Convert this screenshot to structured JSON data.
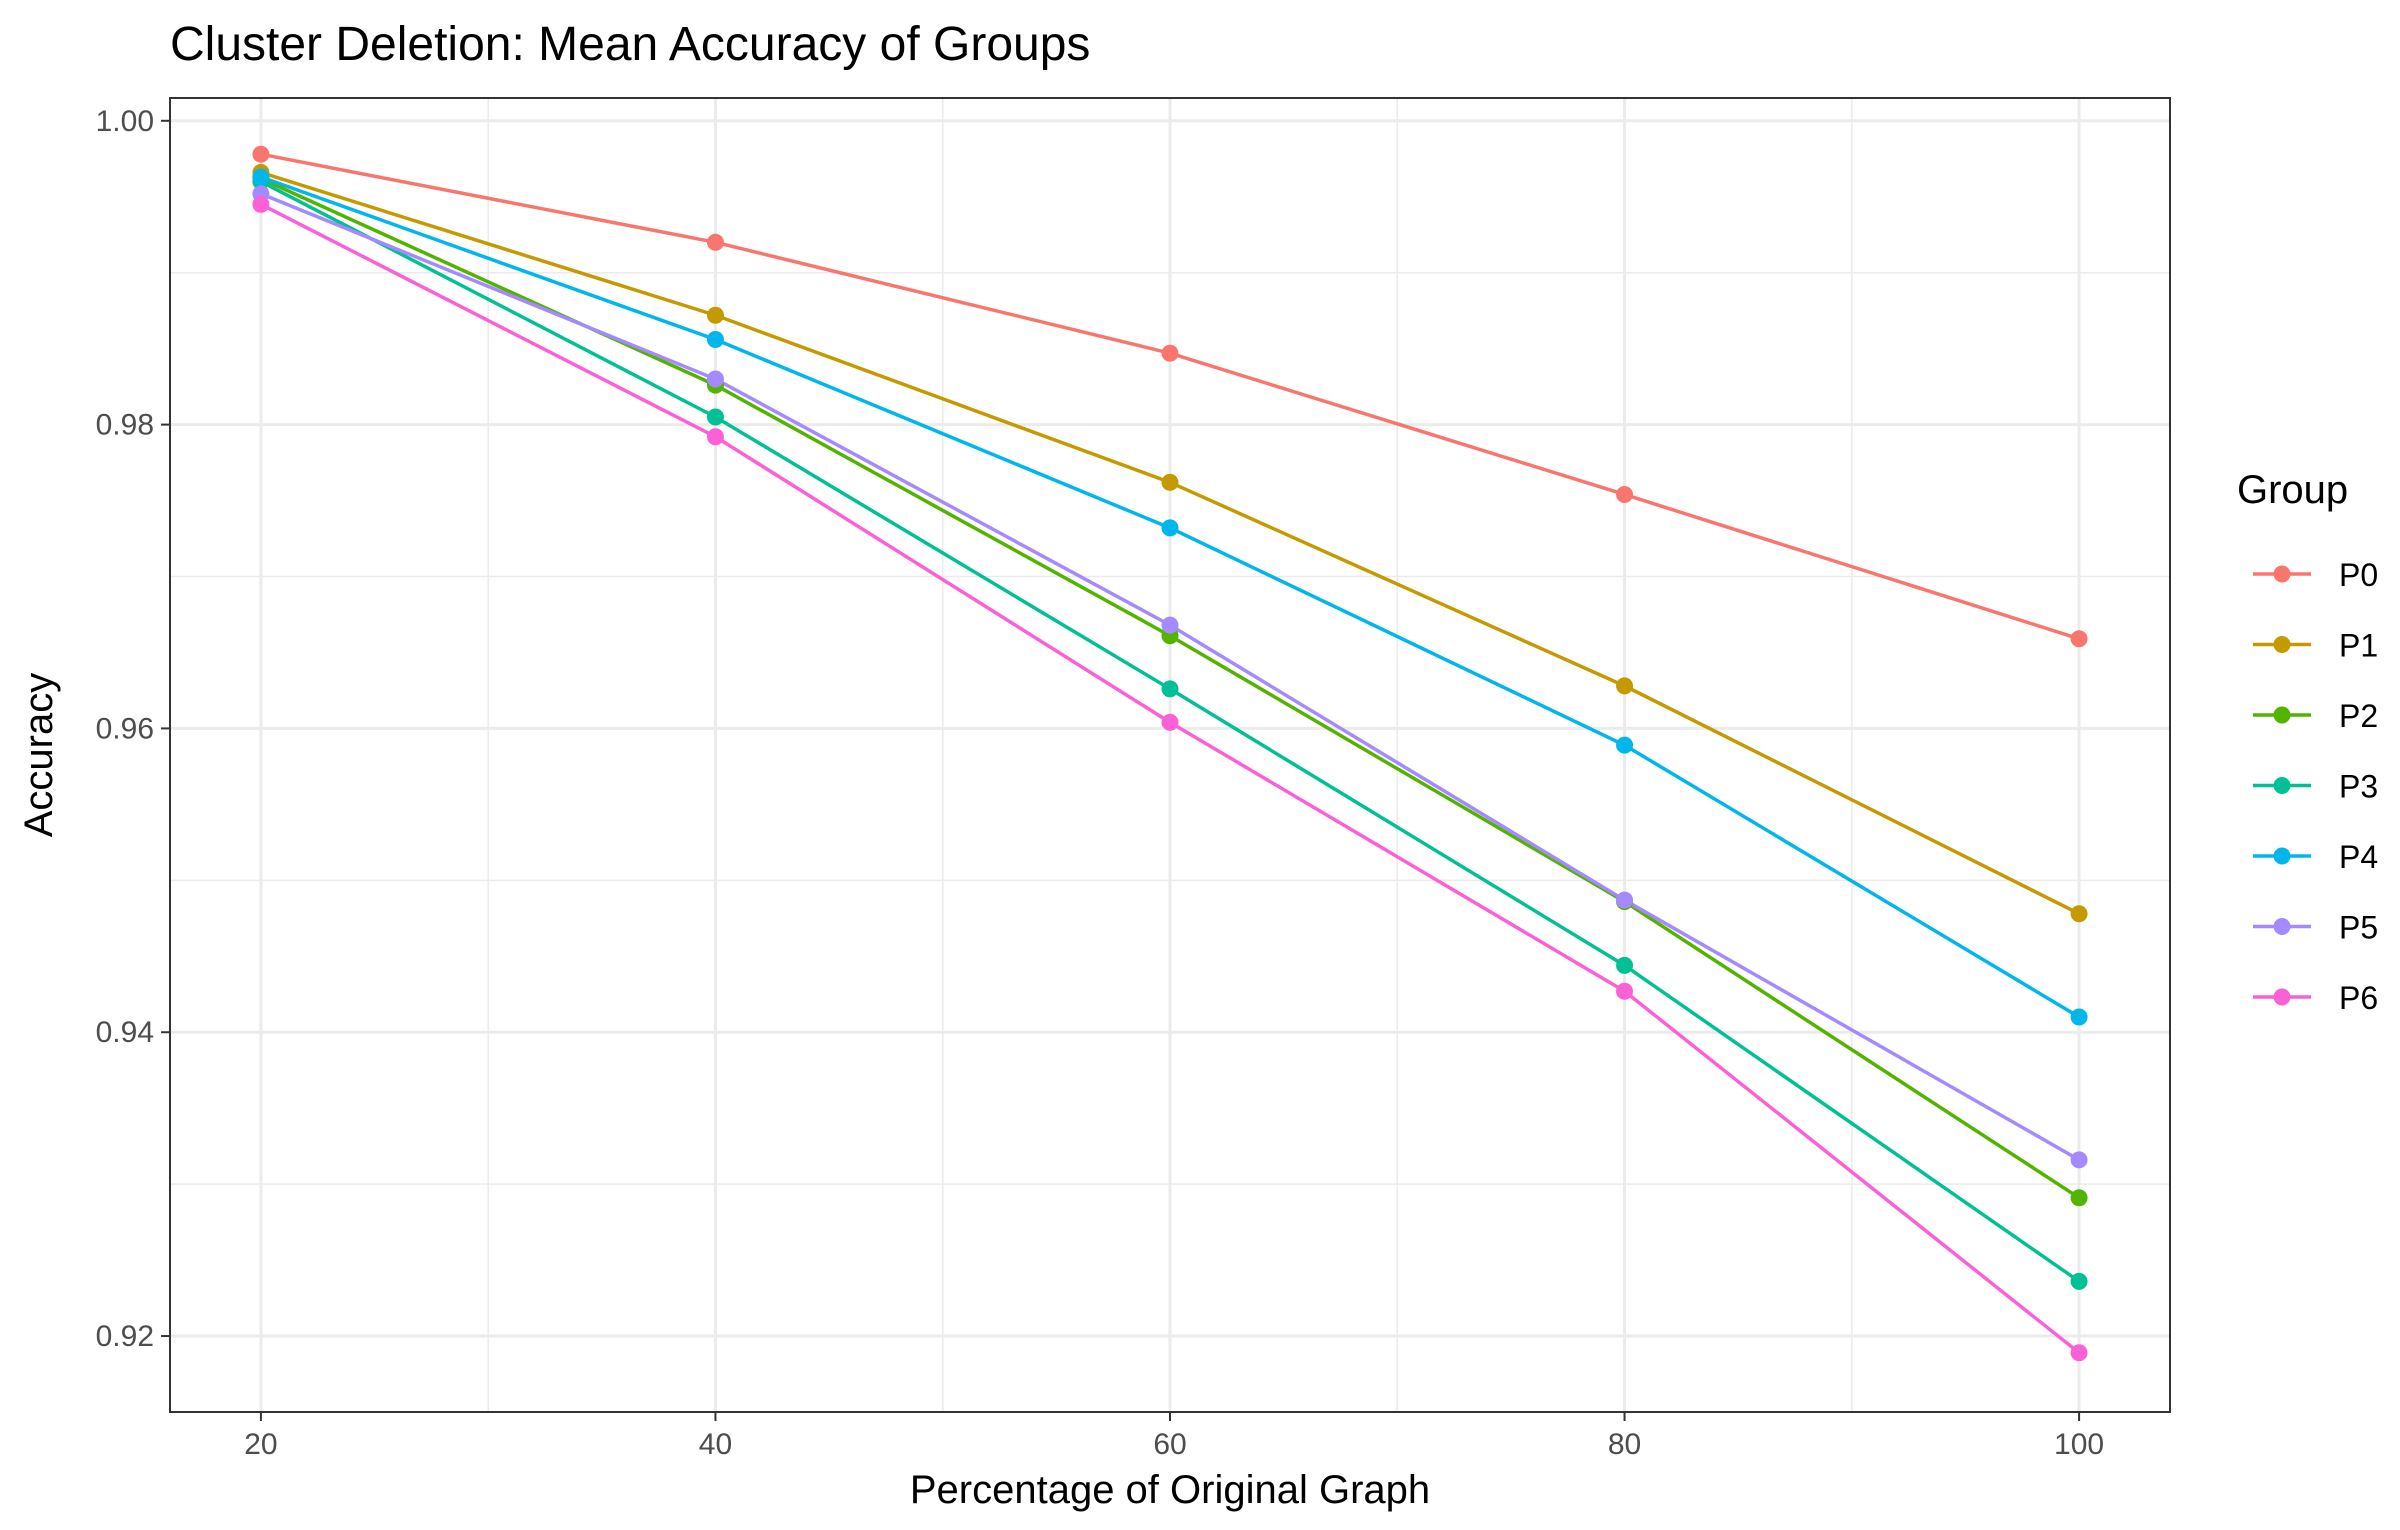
{
  "chart_data": {
    "type": "line",
    "title": "Cluster Deletion: Mean Accuracy of Groups",
    "xlabel": "Percentage of Original Graph",
    "ylabel": "Accuracy",
    "x": [
      20,
      40,
      60,
      80,
      100
    ],
    "xlim": [
      16,
      104
    ],
    "ylim": [
      0.915,
      1.0015
    ],
    "x_ticks": [
      20,
      40,
      60,
      80,
      100
    ],
    "x_tick_labels": [
      "20",
      "40",
      "60",
      "80",
      "100"
    ],
    "y_ticks": [
      0.92,
      0.94,
      0.96,
      0.98,
      1.0
    ],
    "y_tick_labels": [
      "0.92",
      "0.94",
      "0.96",
      "0.98",
      "1.00"
    ],
    "grid": true,
    "legend": {
      "title": "Group",
      "position": "right"
    },
    "series": [
      {
        "name": "P0",
        "color": "#F8766D",
        "values": [
          0.9978,
          0.992,
          0.9847,
          0.9754,
          0.9659
        ]
      },
      {
        "name": "P1",
        "color": "#C49A00",
        "values": [
          0.9966,
          0.9872,
          0.9762,
          0.9628,
          0.9478
        ]
      },
      {
        "name": "P2",
        "color": "#53B400",
        "values": [
          0.9962,
          0.9826,
          0.9661,
          0.9486,
          0.9291
        ]
      },
      {
        "name": "P3",
        "color": "#00C094",
        "values": [
          0.996,
          0.9805,
          0.9626,
          0.9444,
          0.9236
        ]
      },
      {
        "name": "P4",
        "color": "#00B6EB",
        "values": [
          0.9963,
          0.9856,
          0.9732,
          0.9589,
          0.941
        ]
      },
      {
        "name": "P5",
        "color": "#A58AFF",
        "values": [
          0.9952,
          0.983,
          0.9668,
          0.9487,
          0.9316
        ]
      },
      {
        "name": "P6",
        "color": "#FB61D7",
        "values": [
          0.9945,
          0.9792,
          0.9604,
          0.9427,
          0.9189
        ]
      }
    ]
  }
}
